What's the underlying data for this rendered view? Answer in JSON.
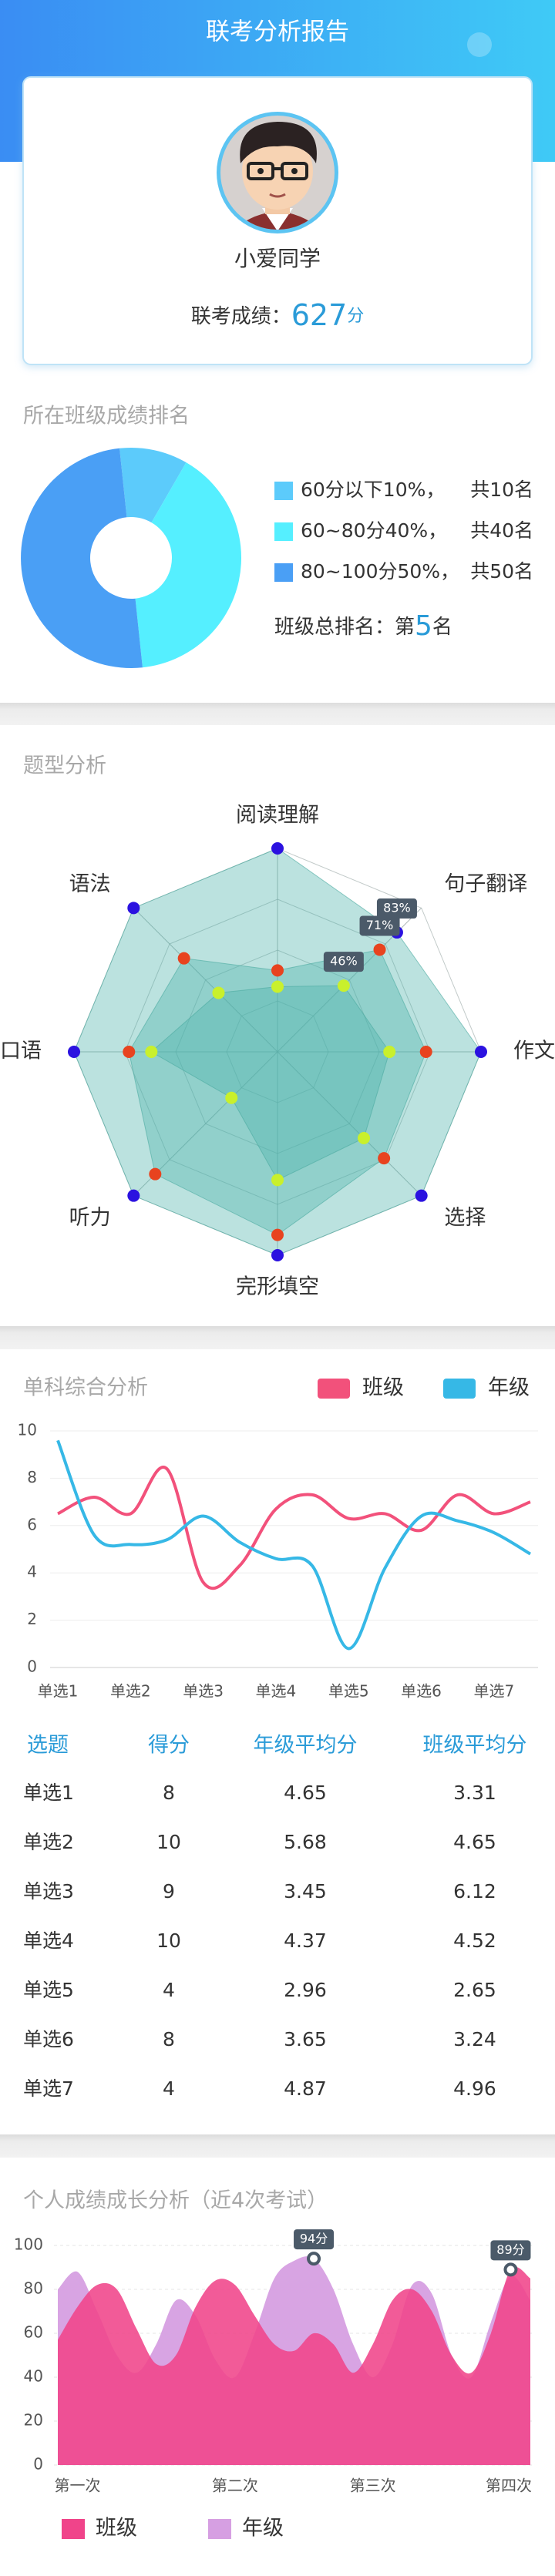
{
  "header": {
    "title": "联考分析报告"
  },
  "profile": {
    "name": "小爱同学",
    "score_label": "联考成绩：",
    "score": "627",
    "score_unit": "分"
  },
  "chart_data": [
    {
      "type": "pie",
      "title": "所在班级成绩排名",
      "values": [
        10,
        40,
        50
      ],
      "colors": [
        "#5ccbfb",
        "#55efff",
        "#4a9ff5"
      ],
      "legend": [
        "60分以下10%，",
        "60~80分40%，",
        "80~100分50%，"
      ],
      "counts": [
        "共10名",
        "共40名",
        "共50名"
      ],
      "rank_label": "班级总排名：第",
      "rank": "5",
      "rank_unit": "名"
    },
    {
      "type": "radar",
      "title": "题型分析",
      "indicators": [
        "阅读理解",
        "句子翻译",
        "作文",
        "选择",
        "完形填空",
        "听力",
        "口语",
        "语法"
      ],
      "rlim": [
        0,
        100
      ],
      "series": [
        {
          "color": "#2b12e0",
          "values": [
            100,
            83,
            100,
            100,
            100,
            100,
            100,
            100
          ],
          "value_labels": [
            null,
            "83%",
            null,
            null,
            null,
            null,
            null,
            null
          ]
        },
        {
          "color": "#e8431f",
          "values": [
            40,
            71,
            73,
            74,
            90,
            85,
            73,
            65
          ],
          "value_labels": [
            null,
            "71%",
            null,
            null,
            null,
            null,
            null,
            null
          ]
        },
        {
          "color": "#c9f02c",
          "values": [
            32,
            46,
            55,
            60,
            63,
            32,
            62,
            41
          ],
          "value_labels": [
            null,
            "46%",
            null,
            null,
            null,
            null,
            null,
            null
          ]
        }
      ]
    },
    {
      "type": "line",
      "title": "单科综合分析",
      "categories": [
        "单选1",
        null,
        "单选2",
        null,
        "单选3",
        null,
        "单选4",
        null,
        "单选5",
        null,
        "单选6",
        null,
        "单选7",
        null
      ],
      "ylim": [
        0,
        10
      ],
      "yticks": [
        0,
        2,
        4,
        6,
        8,
        10
      ],
      "grid": true,
      "series": [
        {
          "name": "班级",
          "color": "#f2517b",
          "values": [
            6.5,
            7.2,
            6.5,
            8.4,
            3.6,
            4.3,
            6.7,
            7.3,
            6.3,
            6.5,
            5.8,
            7.3,
            6.5,
            7.0
          ]
        },
        {
          "name": "年级",
          "color": "#36b8e6",
          "values": [
            9.6,
            5.6,
            5.2,
            5.4,
            6.4,
            5.3,
            4.6,
            4.3,
            0.8,
            4.2,
            6.4,
            6.2,
            5.7,
            4.8
          ]
        }
      ]
    },
    {
      "type": "area",
      "title": "个人成绩成长分析（近4次考试）",
      "categories": [
        null,
        "第一次",
        null,
        null,
        null,
        null,
        null,
        null,
        null,
        "第二次",
        null,
        null,
        null,
        null,
        null,
        null,
        "第三次",
        null,
        null,
        null,
        null,
        null,
        null,
        "第四次",
        null
      ],
      "ylim": [
        0,
        100
      ],
      "yticks": [
        0,
        20,
        40,
        60,
        80,
        100
      ],
      "grid": true,
      "series": [
        {
          "name": "班级",
          "color": "#f0448a",
          "values": [
            57,
            72,
            82,
            80,
            62,
            46,
            50,
            72,
            84,
            82,
            68,
            55,
            52,
            60,
            55,
            42,
            55,
            75,
            80,
            70,
            50,
            42,
            60,
            89,
            85
          ],
          "value_labels": [
            null,
            null,
            null,
            null,
            null,
            null,
            null,
            null,
            null,
            null,
            null,
            null,
            null,
            null,
            null,
            null,
            null,
            null,
            null,
            null,
            null,
            null,
            null,
            "89分",
            null
          ]
        },
        {
          "name": "年级",
          "color": "#d69fe2",
          "values": [
            80,
            88,
            70,
            50,
            42,
            55,
            75,
            68,
            48,
            40,
            60,
            85,
            93,
            94,
            80,
            55,
            40,
            55,
            82,
            78,
            50,
            40,
            65,
            86,
            75
          ],
          "value_labels": [
            null,
            null,
            null,
            null,
            null,
            null,
            null,
            null,
            null,
            null,
            null,
            null,
            null,
            "94分",
            null,
            null,
            null,
            null,
            null,
            null,
            null,
            null,
            null,
            null,
            null
          ]
        }
      ]
    }
  ],
  "table": {
    "header": [
      "选题",
      "得分",
      "年级平均分",
      "班级平均分"
    ],
    "rows": [
      [
        "单选1",
        "8",
        "4.65",
        "3.31"
      ],
      [
        "单选2",
        "10",
        "5.68",
        "4.65"
      ],
      [
        "单选3",
        "9",
        "3.45",
        "6.12"
      ],
      [
        "单选4",
        "10",
        "4.37",
        "4.52"
      ],
      [
        "单选5",
        "4",
        "2.96",
        "2.65"
      ],
      [
        "单选6",
        "8",
        "3.65",
        "3.24"
      ],
      [
        "单选7",
        "4",
        "4.87",
        "4.96"
      ]
    ]
  }
}
